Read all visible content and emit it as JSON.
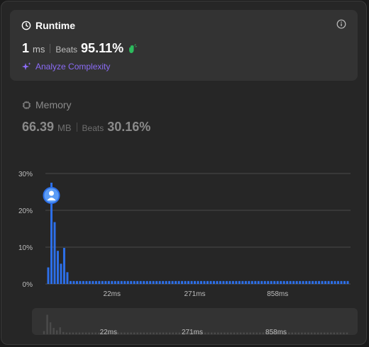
{
  "runtime": {
    "title": "Runtime",
    "value": "1",
    "unit": "ms",
    "beats_label": "Beats",
    "beats_value": "95.11%",
    "analyze_label": "Analyze Complexity"
  },
  "memory": {
    "title": "Memory",
    "value": "66.39",
    "unit": "MB",
    "beats_label": "Beats",
    "beats_value": "30.16%"
  },
  "colors": {
    "bar": "#2d6fe8",
    "accent": "#8b6cf6",
    "clap": "#2cbb5d",
    "mini_bar": "#4a4a4a"
  },
  "icons": [
    "clock-icon",
    "info-icon",
    "clap-icon",
    "sparkle-icon",
    "chip-icon",
    "avatar-icon"
  ],
  "chart_data": {
    "type": "bar",
    "y_ticks": [
      "30%",
      "20%",
      "10%",
      "0%"
    ],
    "ylim": [
      0,
      30
    ],
    "x_tick_labels": [
      {
        "index": 20,
        "label": "22ms"
      },
      {
        "index": 46,
        "label": "271ms"
      },
      {
        "index": 72,
        "label": "858ms"
      }
    ],
    "values": [
      4.5,
      27.5,
      16.8,
      9.0,
      5.5,
      9.8,
      3.2,
      0.8,
      0.8,
      0.8,
      0.8,
      0.8,
      0.8,
      0.8,
      0.8,
      0.8,
      0.8,
      0.8,
      0.8,
      0.8,
      0.8,
      0.8,
      0.8,
      0.8,
      0.8,
      0.8,
      0.8,
      0.8,
      0.8,
      0.8,
      0.8,
      0.8,
      0.8,
      0.8,
      0.8,
      0.8,
      0.8,
      0.8,
      0.8,
      0.8,
      0.8,
      0.8,
      0.8,
      0.8,
      0.8,
      0.8,
      0.8,
      0.8,
      0.8,
      0.8,
      0.8,
      0.8,
      0.8,
      0.8,
      0.8,
      0.8,
      0.8,
      0.8,
      0.8,
      0.8,
      0.8,
      0.8,
      0.8,
      0.8,
      0.8,
      0.8,
      0.8,
      0.8,
      0.8,
      0.8,
      0.8,
      0.8,
      0.8,
      0.8,
      0.8,
      0.8,
      0.8,
      0.8,
      0.8,
      0.8,
      0.8,
      0.8,
      0.8,
      0.8,
      0.8,
      0.8,
      0.8,
      0.8,
      0.8,
      0.8,
      0.8,
      0.8,
      0.8,
      0.8,
      0.8
    ],
    "user_bar_index": 1
  },
  "navigator": {
    "x_tick_labels": [
      {
        "index": 20,
        "label": "22ms"
      },
      {
        "index": 46,
        "label": "271ms"
      },
      {
        "index": 72,
        "label": "858ms"
      }
    ]
  }
}
